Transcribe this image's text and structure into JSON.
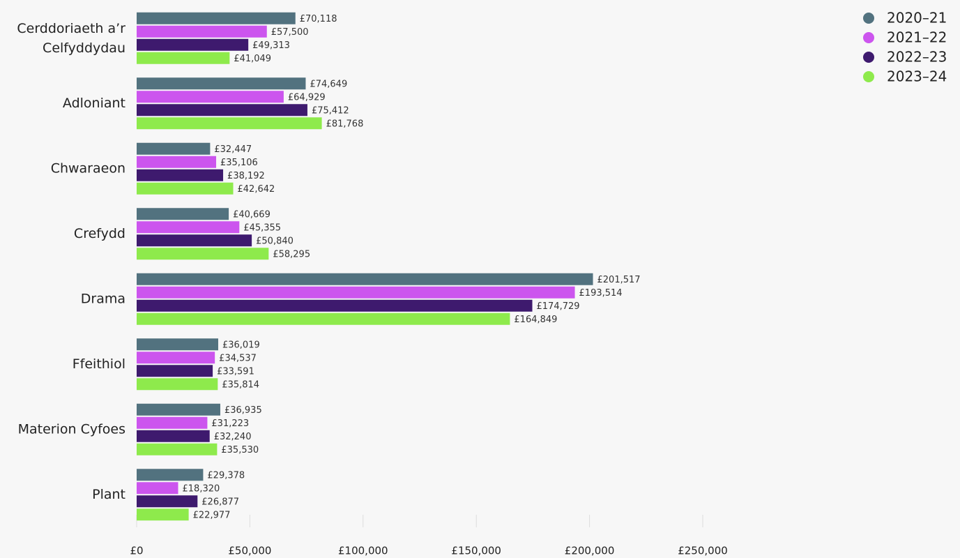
{
  "chart_data": {
    "type": "bar",
    "orientation": "horizontal",
    "categories": [
      "Cerddoriaeth a’r Celfyddydau",
      "Adloniant",
      "Chwaraeon",
      "Crefydd",
      "Drama",
      "Ffeithiol",
      "Materion Cyfoes",
      "Plant"
    ],
    "series": [
      {
        "name": "2020–21",
        "color": "#52727f",
        "values": [
          70118,
          74649,
          32447,
          40669,
          201517,
          36019,
          36935,
          29378
        ],
        "value_labels": [
          "£70,118",
          "£74,649",
          "£32,447",
          "£40,669",
          "£201,517",
          "£36,019",
          "£36,935",
          "£29,378"
        ]
      },
      {
        "name": "2021–22",
        "color": "#cc55ee",
        "values": [
          57500,
          64929,
          35106,
          45355,
          193514,
          34537,
          31223,
          18320
        ],
        "value_labels": [
          "£57,500",
          "£64,929",
          "£35,106",
          "£45,355",
          "£193,514",
          "£34,537",
          "£31,223",
          "£18,320"
        ]
      },
      {
        "name": "2022–23",
        "color": "#3e1a6e",
        "values": [
          49313,
          75412,
          38192,
          50840,
          174729,
          33591,
          32240,
          26877
        ],
        "value_labels": [
          "£49,313",
          "£75,412",
          "£38,192",
          "£50,840",
          "£174,729",
          "£33,591",
          "£32,240",
          "£26,877"
        ]
      },
      {
        "name": "2023–24",
        "color": "#8eea4c",
        "values": [
          41049,
          81768,
          42642,
          58295,
          164849,
          35814,
          35530,
          22977
        ],
        "value_labels": [
          "£41,049",
          "£81,768",
          "£42,642",
          "£58,295",
          "£164,849",
          "£35,814",
          "£35,530",
          "£22,977"
        ]
      }
    ],
    "xlim": [
      0,
      250000
    ],
    "xticks": [
      {
        "value": 0,
        "label": "£0"
      },
      {
        "value": 50000,
        "label": "£50,000"
      },
      {
        "value": 100000,
        "label": "£100,000"
      },
      {
        "value": 150000,
        "label": "£150,000"
      },
      {
        "value": 200000,
        "label": "£200,000"
      },
      {
        "value": 250000,
        "label": "£250,000"
      }
    ],
    "legend": "top-right"
  }
}
